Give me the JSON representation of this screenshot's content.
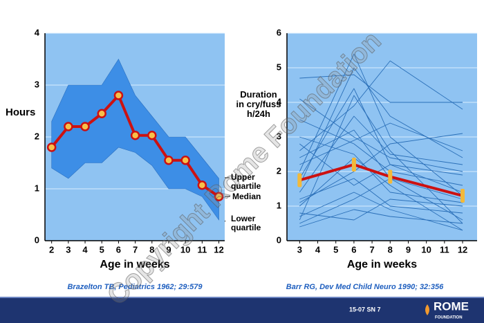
{
  "chart_data": [
    {
      "type": "band-line",
      "y_label": "Hours",
      "x_label": "Age in weeks",
      "x": [
        2,
        3,
        4,
        5,
        6,
        7,
        8,
        9,
        10,
        11,
        12
      ],
      "xlim": [
        1.6,
        12.35
      ],
      "ylim": [
        0,
        4
      ],
      "yticks": [
        0,
        1,
        2,
        3,
        4
      ],
      "grid": true,
      "series": [
        {
          "name": "Median",
          "color": "#cc1111",
          "values": [
            1.8,
            2.2,
            2.2,
            2.45,
            2.8,
            2.03,
            2.03,
            1.55,
            1.55,
            1.07,
            0.85
          ]
        }
      ],
      "band": {
        "upper_name": "Upper quartile",
        "lower_name": "Lower quartile",
        "color": "#3d8ee6",
        "upper": [
          2.3,
          3.0,
          3.0,
          3.0,
          3.5,
          2.8,
          2.4,
          2.0,
          2.0,
          1.6,
          1.2
        ],
        "lower": [
          1.4,
          1.2,
          1.5,
          1.5,
          1.8,
          1.7,
          1.45,
          1.0,
          1.0,
          0.85,
          0.4
        ]
      },
      "source": "Brazelton TB, Pediatrics 1962; 29:579"
    },
    {
      "type": "spaghetti",
      "y_label": "Duration in cry/fuss h/24h",
      "x_label": "Age in weeks",
      "xticks": [
        3,
        4,
        5,
        6,
        7,
        8,
        9,
        10,
        11,
        12
      ],
      "x": [
        3,
        6,
        8,
        12
      ],
      "xlim": [
        2.3,
        12.8
      ],
      "ylim": [
        0,
        6
      ],
      "yticks": [
        0,
        1,
        2,
        3,
        4,
        5,
        6
      ],
      "grid": true,
      "series": [
        {
          "name": "Median",
          "color": "#cc1111",
          "values": [
            1.75,
            2.2,
            1.85,
            1.3
          ]
        }
      ],
      "lines_color": "#2a6fb8",
      "lines": [
        [
          0.6,
          4.2,
          2.6,
          0.5
        ],
        [
          2.0,
          5.4,
          3.0,
          1.3
        ],
        [
          1.0,
          2.4,
          1.6,
          0.3
        ],
        [
          4.7,
          4.8,
          4.0,
          4.0
        ],
        [
          1.4,
          3.6,
          2.5,
          2.2
        ],
        [
          0.5,
          1.2,
          1.8,
          0.6
        ],
        [
          2.6,
          3.9,
          5.2,
          3.8
        ],
        [
          1.2,
          1.8,
          1.0,
          0.8
        ],
        [
          3.5,
          2.8,
          2.0,
          1.6
        ],
        [
          0.8,
          0.6,
          1.2,
          1.0
        ],
        [
          2.2,
          2.9,
          3.4,
          2.6
        ],
        [
          1.8,
          4.4,
          2.2,
          1.9
        ],
        [
          0.4,
          0.9,
          0.7,
          0.5
        ],
        [
          3.0,
          2.5,
          1.4,
          1.1
        ],
        [
          1.6,
          5.0,
          3.6,
          2.4
        ],
        [
          2.8,
          1.6,
          2.2,
          1.4
        ],
        [
          1.1,
          2.0,
          2.8,
          3.1
        ],
        [
          0.7,
          1.4,
          0.9,
          0.3
        ],
        [
          2.4,
          3.2,
          1.8,
          1.2
        ],
        [
          4.1,
          3.0,
          2.4,
          2.0
        ]
      ],
      "source": "Barr RG, Dev Med Child Neuro 1990; 32:356"
    }
  ],
  "footer": {
    "code": "15-07  SN 7",
    "logo": "ROME",
    "logo_sub": "FOUNDATION"
  },
  "watermark": "Copyright Rome Foundation"
}
